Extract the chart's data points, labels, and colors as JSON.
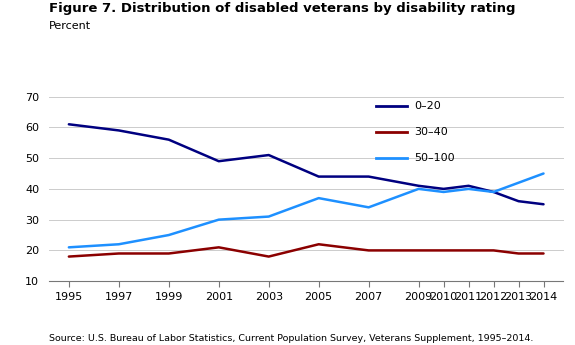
{
  "title": "Figure 7. Distribution of disabled veterans by disability rating",
  "ylabel": "Percent",
  "source": "Source: U.S. Bureau of Labor Statistics, Current Population Survey, Veterans Supplement, 1995–2014.",
  "ylim": [
    10,
    70
  ],
  "yticks": [
    10,
    20,
    30,
    40,
    50,
    60,
    70
  ],
  "years": [
    1995,
    1997,
    1999,
    2001,
    2003,
    2005,
    2007,
    2009,
    2010,
    2011,
    2012,
    2013,
    2014
  ],
  "series": {
    "0-20": {
      "color": "#000080",
      "values": [
        61,
        59,
        56,
        49,
        51,
        44,
        44,
        41,
        40,
        41,
        39,
        36,
        35
      ]
    },
    "30-40": {
      "color": "#8b0000",
      "values": [
        18,
        19,
        19,
        21,
        18,
        22,
        20,
        20,
        20,
        20,
        20,
        19,
        19
      ]
    },
    "50-100": {
      "color": "#1e90ff",
      "values": [
        21,
        22,
        25,
        30,
        31,
        37,
        34,
        40,
        39,
        40,
        39,
        42,
        45
      ]
    }
  },
  "legend_labels": [
    "0–20",
    "30–40",
    "50–100"
  ],
  "legend_colors": [
    "#000080",
    "#8b0000",
    "#1e90ff"
  ],
  "bg_color": "#ffffff",
  "grid_color": "#cccccc"
}
